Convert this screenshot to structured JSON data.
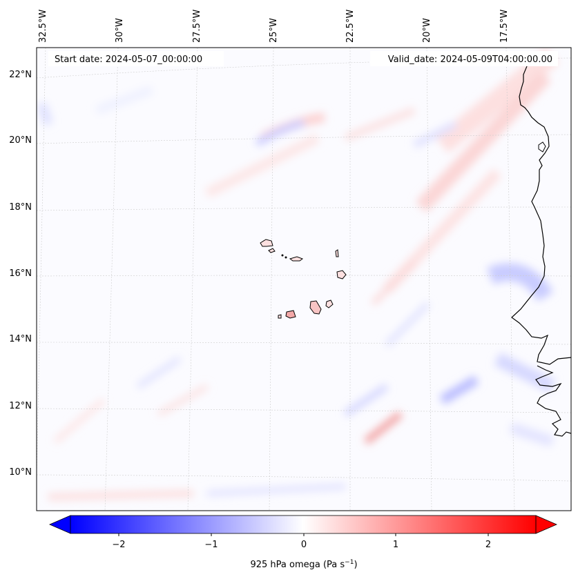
{
  "header": {
    "start_date": "Start date: 2024-05-07_00:00:00",
    "valid_date": "Valid_date: 2024-05-09T04:00:00.00"
  },
  "axes": {
    "lon_labels": [
      "32.5°W",
      "30°W",
      "27.5°W",
      "25°W",
      "22.5°W",
      "20°W",
      "17.5°W"
    ],
    "lat_labels": [
      "22°N",
      "20°N",
      "18°N",
      "16°N",
      "14°N",
      "12°N",
      "10°N"
    ]
  },
  "colorbar": {
    "label": "925 hPa omega (Pa s",
    "label_sup": "−1",
    "label_end": ")",
    "ticks": [
      "−2",
      "−1",
      "0",
      "1",
      "2"
    ],
    "cmap_low": "#0000ff",
    "cmap_mid": "#ffffff",
    "cmap_high": "#ff0000"
  }
}
